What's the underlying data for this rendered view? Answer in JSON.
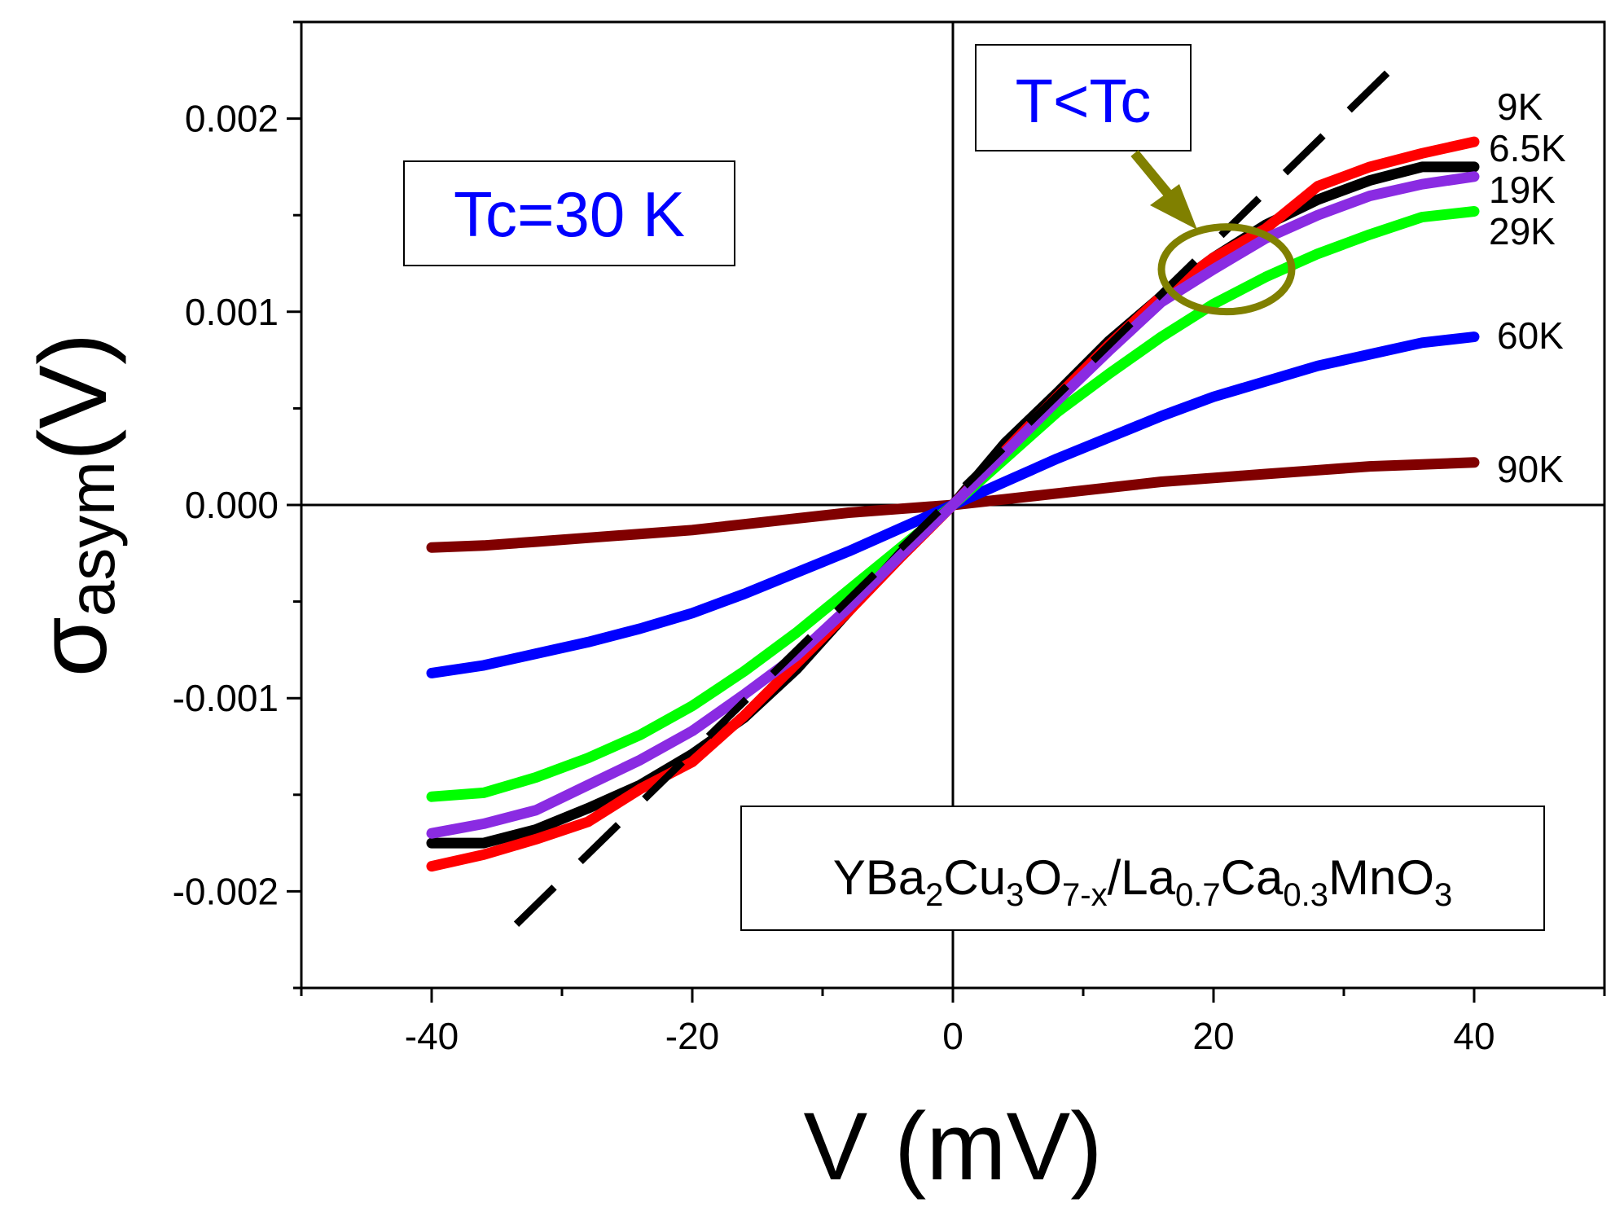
{
  "chart_data": {
    "type": "line",
    "xlabel": "V (mV)",
    "ylabel_main": "σ",
    "ylabel_sub": "asym",
    "ylabel_paren": "(V)",
    "xlim": [
      -50,
      50
    ],
    "ylim": [
      -0.0025,
      0.0025
    ],
    "xticks": [
      -40,
      -20,
      0,
      20,
      40
    ],
    "xtick_labels": [
      "-40",
      "-20",
      "0",
      "20",
      "40"
    ],
    "yticks": [
      -0.002,
      -0.001,
      0,
      0.001,
      0.002
    ],
    "ytick_labels": [
      "-0.002",
      "-0.001",
      "0.000",
      "0.001",
      "0.002"
    ],
    "grid": false,
    "series": [
      {
        "name": "9K",
        "color": "#000000",
        "x": [
          -40,
          -36,
          -32,
          -28,
          -24,
          -20,
          -16,
          -12,
          -8,
          -4,
          0,
          4,
          8,
          12,
          16,
          20,
          24,
          28,
          32,
          36,
          40
        ],
        "y": [
          -0.00175,
          -0.00175,
          -0.00168,
          -0.00157,
          -0.00145,
          -0.00129,
          -0.0011,
          -0.00085,
          -0.00055,
          -0.00025,
          0,
          0.00032,
          0.00058,
          0.00085,
          0.00108,
          0.00128,
          0.00145,
          0.00158,
          0.00168,
          0.00175,
          0.00175
        ]
      },
      {
        "name": "6.5K",
        "color": "#ff0000",
        "x": [
          -40,
          -36,
          -32,
          -28,
          -24,
          -20,
          -16,
          -12,
          -8,
          -4,
          0,
          4,
          8,
          12,
          16,
          20,
          24,
          28,
          32,
          36,
          40
        ],
        "y": [
          -0.00187,
          -0.00181,
          -0.00173,
          -0.00164,
          -0.00147,
          -0.00133,
          -0.00109,
          -0.00082,
          -0.00055,
          -0.00027,
          0,
          0.00028,
          0.00056,
          0.00083,
          0.00108,
          0.00128,
          0.00143,
          0.00165,
          0.00175,
          0.00182,
          0.00188
        ]
      },
      {
        "name": "19K",
        "color": "#8a2be2",
        "x": [
          -40,
          -36,
          -32,
          -28,
          -24,
          -20,
          -16,
          -12,
          -8,
          -4,
          0,
          4,
          8,
          12,
          16,
          20,
          24,
          28,
          32,
          36,
          40
        ],
        "y": [
          -0.0017,
          -0.00165,
          -0.00158,
          -0.00145,
          -0.00132,
          -0.00117,
          -0.00098,
          -0.00078,
          -0.00053,
          -0.00026,
          0,
          0.00027,
          0.00054,
          0.0008,
          0.00105,
          0.00122,
          0.00138,
          0.0015,
          0.0016,
          0.00166,
          0.0017
        ]
      },
      {
        "name": "29K",
        "color": "#00ff00",
        "x": [
          -40,
          -36,
          -32,
          -28,
          -24,
          -20,
          -16,
          -12,
          -8,
          -4,
          0,
          4,
          8,
          12,
          16,
          20,
          24,
          28,
          32,
          36,
          40
        ],
        "y": [
          -0.00151,
          -0.00149,
          -0.00141,
          -0.00131,
          -0.00119,
          -0.00104,
          -0.00086,
          -0.00066,
          -0.00044,
          -0.00022,
          0,
          0.00024,
          0.00048,
          0.00068,
          0.00087,
          0.00104,
          0.00118,
          0.0013,
          0.0014,
          0.00149,
          0.00152
        ]
      },
      {
        "name": "60K",
        "color": "#0000ff",
        "x": [
          -40,
          -36,
          -32,
          -28,
          -24,
          -20,
          -16,
          -12,
          -8,
          -4,
          0,
          4,
          8,
          12,
          16,
          20,
          24,
          28,
          32,
          36,
          40
        ],
        "y": [
          -0.00087,
          -0.00083,
          -0.00077,
          -0.00071,
          -0.00064,
          -0.00056,
          -0.00046,
          -0.00035,
          -0.00024,
          -0.00012,
          0,
          0.00012,
          0.00024,
          0.00035,
          0.00046,
          0.00056,
          0.00064,
          0.00072,
          0.00078,
          0.00084,
          0.00087
        ]
      },
      {
        "name": "90K",
        "color": "#800000",
        "x": [
          -40,
          -36,
          -32,
          -28,
          -24,
          -20,
          -16,
          -12,
          -8,
          -4,
          0,
          4,
          8,
          12,
          16,
          20,
          24,
          28,
          32,
          36,
          40
        ],
        "y": [
          -0.00022,
          -0.00021,
          -0.00019,
          -0.00017,
          -0.00015,
          -0.00013,
          -0.0001,
          -7e-05,
          -4e-05,
          -2e-05,
          0,
          3e-05,
          6e-05,
          9e-05,
          0.00012,
          0.00014,
          0.00016,
          0.00018,
          0.0002,
          0.00021,
          0.00022
        ]
      }
    ],
    "fit_line": {
      "style": "dashed",
      "color": "#000000",
      "x": [
        -33.5,
        34
      ],
      "y": [
        -0.00217,
        0.00228
      ]
    },
    "annotations": {
      "tc_box": "Tc=30 K",
      "t_box": "T<Tc",
      "sample_box": {
        "parts": [
          "YBa",
          "2",
          "Cu",
          "3",
          "O",
          "7-x",
          "/La",
          "0.7",
          "Ca",
          "0.3",
          "MnO",
          "3"
        ]
      },
      "circle_center": [
        21,
        0.00122
      ],
      "arrow_color": "#808000"
    }
  }
}
